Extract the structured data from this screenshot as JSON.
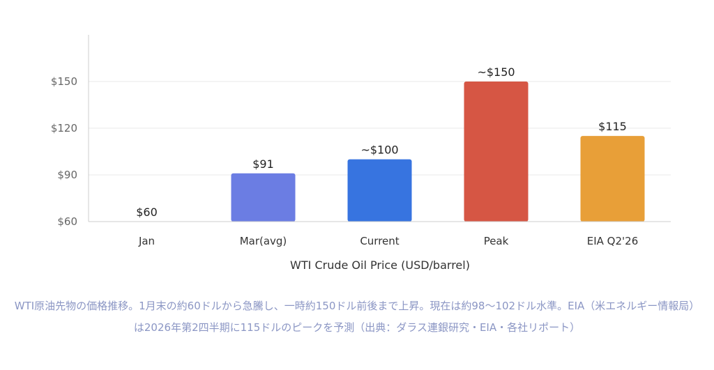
{
  "chart_data": {
    "type": "bar",
    "categories": [
      "Jan",
      "Mar(avg)",
      "Current",
      "Peak",
      "EIA Q2'26"
    ],
    "values": [
      60,
      91,
      100,
      150,
      115
    ],
    "data_labels": [
      "$60",
      "$91",
      "~$100",
      "~$150",
      "$115"
    ],
    "colors": [
      "#8b8fe0",
      "#6b7de3",
      "#3774e0",
      "#d65644",
      "#e89f38"
    ],
    "xlabel": "WTI Crude Oil Price (USD/barrel)",
    "ylabel": "",
    "ylim": [
      60,
      180
    ],
    "yticks": [
      60,
      90,
      120,
      150
    ],
    "ytick_labels": [
      "$60",
      "$90",
      "$120",
      "$150"
    ],
    "grid": true,
    "legend": "none"
  },
  "caption": "WTI原油先物の価格推移。1月末の約60ドルから急騰し、一時約150ドル前後まで上昇。現在は約98〜102ドル水準。EIA（米エネルギー情報局）は2026年第2四半期に115ドルのピークを予測（出典：ダラス連銀研究・EIA・各社リポート）"
}
